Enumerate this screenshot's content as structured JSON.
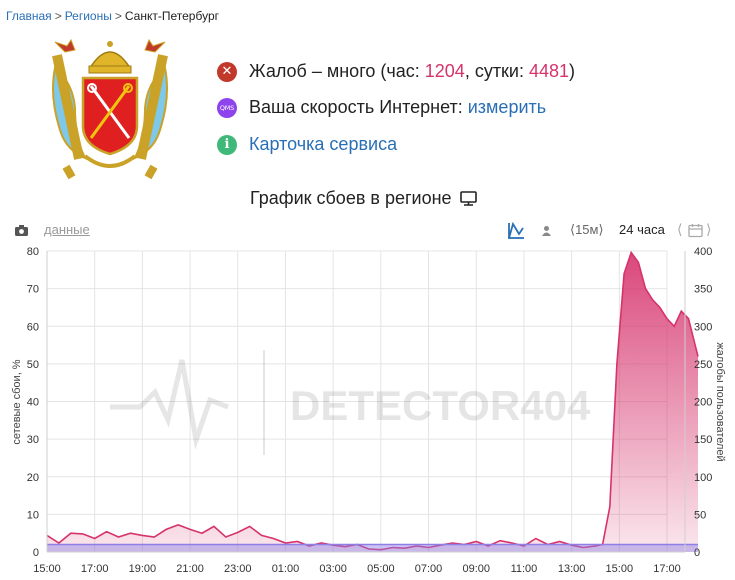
{
  "breadcrumb": {
    "items": [
      "Главная",
      "Регионы",
      "Санкт-Петербург"
    ],
    "separator": ">"
  },
  "status": {
    "complaints_prefix": "Жалоб – много (час: ",
    "hour_value": "1204",
    "day_label": ", сутки: ",
    "day_value": "4481",
    "close": ")",
    "speed_text": "Ваша скорость Интернет: ",
    "speed_link": "измерить",
    "card_link": "Карточка сервиса",
    "qms_badge": "QMS"
  },
  "chart_title": "График сбоев в регионе",
  "toolbar": {
    "data_link": "данные",
    "range_15m": "⟨15м⟩",
    "range_24h": "24 часа"
  },
  "watermark": "DETECTOR404",
  "chart_data": {
    "type": "area",
    "xlabel": "",
    "ylabel_left": "сетевые сбои, %",
    "ylabel_right": "жалобы пользователей",
    "ylim_left": [
      0,
      80
    ],
    "ylim_right": [
      0,
      400
    ],
    "x_ticks": [
      "15:00",
      "17:00",
      "19:00",
      "21:00",
      "23:00",
      "01:00",
      "03:00",
      "05:00",
      "07:00",
      "09:00",
      "11:00",
      "13:00",
      "15:00",
      "17:00"
    ],
    "y_left_ticks": [
      0,
      10,
      20,
      30,
      40,
      50,
      60,
      70,
      80
    ],
    "y_right_ticks": [
      0,
      50,
      100,
      150,
      200,
      250,
      300,
      350,
      400
    ],
    "grid": true,
    "series": [
      {
        "name": "",
        "axis": "right",
        "color": "#d6336c",
        "x_hours": [
          0,
          0.5,
          1,
          1.5,
          2,
          2.5,
          3,
          3.5,
          4,
          4.5,
          5,
          5.5,
          6,
          6.5,
          7,
          7.5,
          8,
          8.5,
          9,
          9.5,
          10,
          10.5,
          11,
          11.5,
          12,
          12.5,
          13,
          13.5,
          14,
          14.5,
          15,
          15.5,
          16,
          16.5,
          17,
          17.5,
          18,
          18.5,
          19,
          19.5,
          20,
          20.5,
          21,
          21.5,
          22,
          22.5,
          23,
          23.3,
          23.6,
          23.9,
          24.2,
          24.5,
          24.8,
          25.1,
          25.4,
          25.7,
          26,
          26.3,
          26.6,
          26.9,
          27.3
        ],
        "values": [
          22,
          12,
          25,
          24,
          18,
          27,
          20,
          25,
          22,
          20,
          30,
          36,
          30,
          25,
          34,
          20,
          26,
          34,
          22,
          18,
          12,
          14,
          8,
          12,
          9,
          7,
          10,
          4,
          3,
          6,
          5,
          8,
          6,
          9,
          12,
          10,
          14,
          8,
          15,
          12,
          8,
          18,
          10,
          14,
          9,
          6,
          8,
          10,
          60,
          250,
          370,
          398,
          385,
          350,
          335,
          325,
          310,
          300,
          320,
          310,
          260
        ]
      },
      {
        "name": "",
        "axis": "left",
        "color": "#8e7fe6",
        "x_hours": [
          0,
          27.3
        ],
        "values": [
          2,
          2
        ]
      }
    ]
  }
}
